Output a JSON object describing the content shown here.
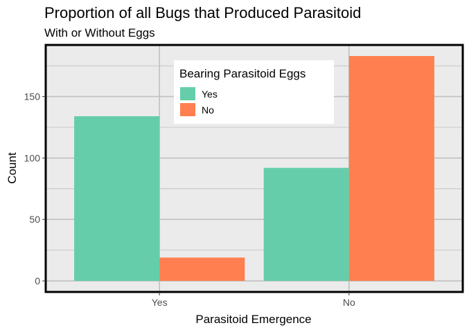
{
  "chart_data": {
    "type": "bar",
    "title": "Proportion of all Bugs that Produced Parasitoid",
    "subtitle": "With or Without Eggs",
    "xlabel": "Parasitoid Emergence",
    "ylabel": "Count",
    "categories": [
      "Yes",
      "No"
    ],
    "series": [
      {
        "name": "Yes",
        "values": [
          134,
          92
        ],
        "color": "#66CDAA"
      },
      {
        "name": "No",
        "values": [
          19,
          183
        ],
        "color": "#FF7F50"
      }
    ],
    "ylim": [
      -9,
      192
    ],
    "yticks": [
      0,
      50,
      100,
      150
    ],
    "grid": true,
    "legend": {
      "title": "Bearing Parasitoid Eggs",
      "position": "top-center-inside"
    },
    "colors": {
      "panel_bg": "#EBEBEB",
      "grid": "#C0C0C0",
      "border": "#000000"
    }
  }
}
